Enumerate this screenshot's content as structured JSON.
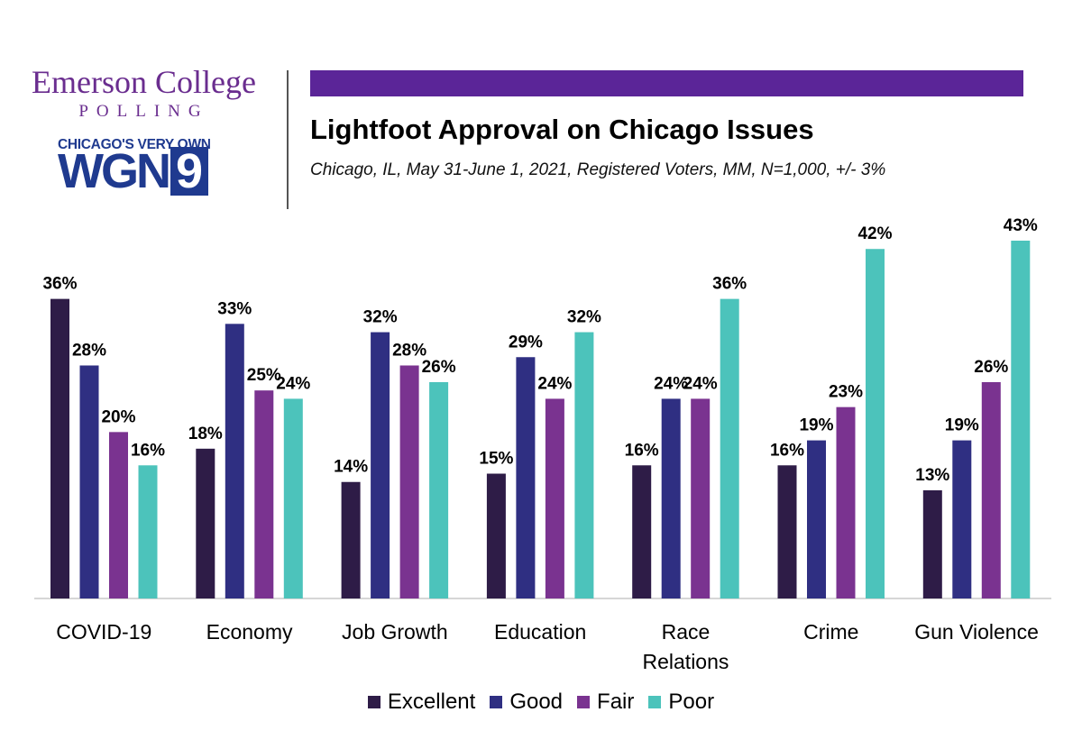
{
  "header": {
    "logo_line1": "Emerson College",
    "logo_line2": "POLLING",
    "wgn_tagline": "CHICAGO'S VERY OWN",
    "wgn_letters": "WGN",
    "wgn_number": "9",
    "banner_color": "#5b2598"
  },
  "chart_data": {
    "type": "bar",
    "title": "Lightfoot Approval on Chicago Issues",
    "subtitle": "Chicago, IL, May 31-June 1, 2021, Registered Voters, MM, N=1,000, +/- 3%",
    "categories": [
      [
        "COVID-19"
      ],
      [
        "Economy"
      ],
      [
        "Job Growth"
      ],
      [
        "Education"
      ],
      [
        "Race",
        "Relations"
      ],
      [
        "Crime"
      ],
      [
        "Gun Violence"
      ]
    ],
    "series": [
      {
        "name": "Excellent",
        "color": "#2e1c47",
        "values": [
          36,
          18,
          14,
          15,
          16,
          16,
          13
        ]
      },
      {
        "name": "Good",
        "color": "#2f2f82",
        "values": [
          28,
          33,
          32,
          29,
          24,
          19,
          19
        ]
      },
      {
        "name": "Fair",
        "color": "#7a3390",
        "values": [
          20,
          25,
          28,
          24,
          24,
          23,
          26
        ]
      },
      {
        "name": "Poor",
        "color": "#4cc3bb",
        "values": [
          16,
          24,
          26,
          32,
          36,
          42,
          43
        ]
      }
    ],
    "value_suffix": "%",
    "ylim": [
      0,
      43
    ],
    "grid": false,
    "legend_position": "bottom"
  }
}
